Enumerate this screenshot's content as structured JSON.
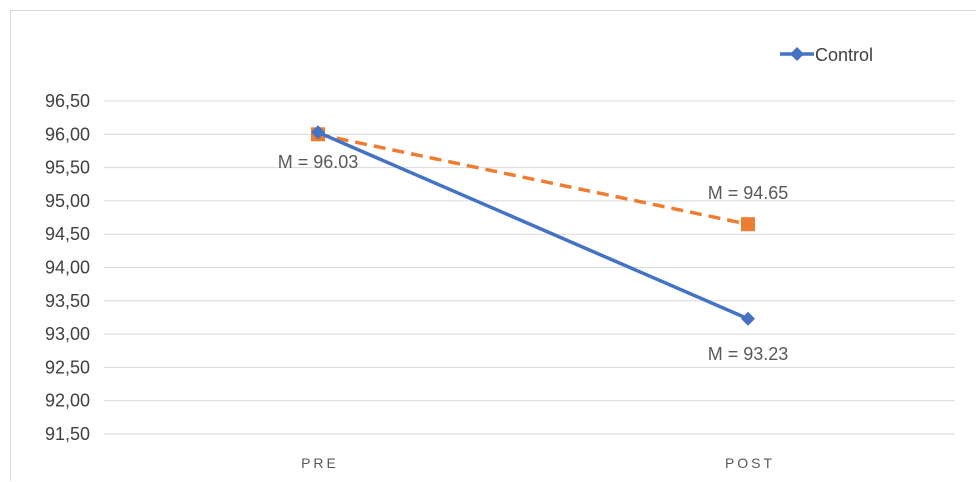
{
  "chart_data": {
    "type": "line",
    "categories": [
      "PRE",
      "POST"
    ],
    "ylim": [
      91.5,
      96.5
    ],
    "yticks": [
      "96,50",
      "96,00",
      "95,50",
      "95,00",
      "94,50",
      "94,00",
      "93,50",
      "93,00",
      "92,50",
      "92,00",
      "91,50"
    ],
    "ytick_values": [
      96.5,
      96.0,
      95.5,
      95.0,
      94.5,
      94.0,
      93.5,
      93.0,
      92.5,
      92.0,
      91.5
    ],
    "grid": true,
    "legend_placement": "top-right",
    "series": [
      {
        "name": "Control",
        "values": [
          96.03,
          93.23
        ],
        "color": "#4472c4",
        "marker": "diamond",
        "dash": "solid",
        "labels": [
          "",
          "M = 93.23"
        ]
      },
      {
        "values": [
          96.0,
          94.65
        ],
        "color": "#ed7d31",
        "marker": "square",
        "dash": "dashed",
        "labels": [
          "M = 96.03",
          "M = 94.65"
        ]
      }
    ]
  }
}
